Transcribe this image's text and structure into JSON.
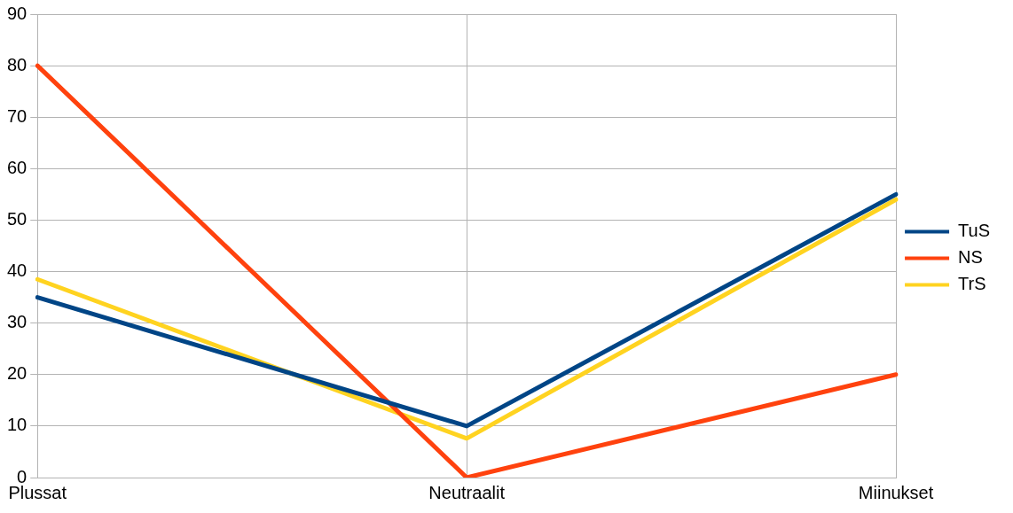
{
  "chart_data": {
    "type": "line",
    "categories": [
      "Plussat",
      "Neutraalit",
      "Miinukset"
    ],
    "series": [
      {
        "name": "TuS",
        "color": "#004586",
        "values": [
          35,
          10,
          55
        ]
      },
      {
        "name": "NS",
        "color": "#ff420e",
        "values": [
          80,
          0,
          20
        ]
      },
      {
        "name": "TrS",
        "color": "#ffd320",
        "values": [
          38.5,
          7.6,
          54
        ]
      }
    ],
    "ylim": [
      0,
      90
    ],
    "yticks": [
      0,
      10,
      20,
      30,
      40,
      50,
      60,
      70,
      80,
      90
    ],
    "grid": true,
    "legend": "right",
    "marker": "none",
    "line_style": "solid"
  }
}
